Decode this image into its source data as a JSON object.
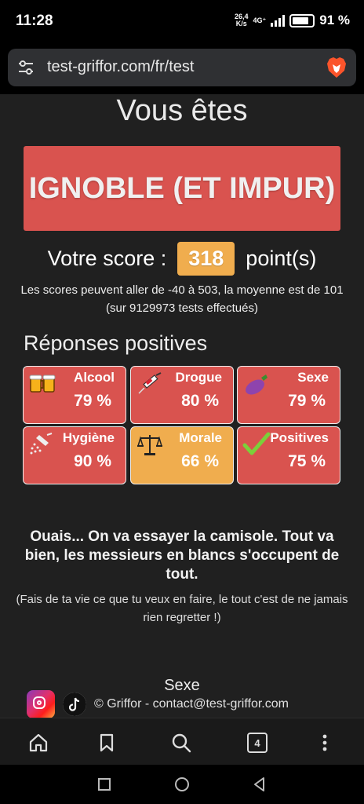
{
  "status_bar": {
    "time": "11:28",
    "net_speed": "26,4",
    "net_unit": "K/s",
    "network": "4G⁺",
    "battery": "91 %"
  },
  "browser": {
    "url": "test-griffor.com/fr/test",
    "tab_count": "4",
    "icons": [
      "tune-icon",
      "brave-icon",
      "home-icon",
      "bookmark-icon",
      "search-icon",
      "tabs-icon",
      "more-icon"
    ]
  },
  "result": {
    "intro": "Vous êtes",
    "label": "IGNOBLE (ET IMPUR)",
    "score_prefix": "Votre score :",
    "score_value": "318",
    "score_suffix": "point(s)",
    "score_note": "Les scores peuvent aller de -40 à 503, la moyenne est de 101 (sur 9129973 tests effectués)"
  },
  "positives": {
    "title": "Réponses positives",
    "items": [
      {
        "name": "Alcool",
        "value": "79 %",
        "icon": "beer-icon",
        "color": "#d9534f"
      },
      {
        "name": "Drogue",
        "value": "80 %",
        "icon": "syringe-icon",
        "color": "#d9534f"
      },
      {
        "name": "Sexe",
        "value": "79 %",
        "icon": "eggplant-icon",
        "color": "#d9534f"
      },
      {
        "name": "Hygiène",
        "value": "90 %",
        "icon": "shower-icon",
        "color": "#d9534f"
      },
      {
        "name": "Morale",
        "value": "66 %",
        "icon": "scales-icon",
        "color": "#f0ad4e"
      },
      {
        "name": "Positives",
        "value": "75 %",
        "icon": "checkmark-icon",
        "color": "#d9534f"
      }
    ]
  },
  "verdict": "Ouais... On va essayer la camisole. Tout va bien, les messieurs en blancs s'occupent de tout.",
  "advice": "(Fais de ta vie ce que tu veux en faire, le tout c'est de ne jamais rien regretter !)",
  "chart_heading": "Sexe",
  "footer": {
    "text": "© Griffor - contact@test-griffor.com"
  },
  "colors": {
    "red": "#d9534f",
    "orange": "#f0ad4e",
    "background": "#202020"
  }
}
